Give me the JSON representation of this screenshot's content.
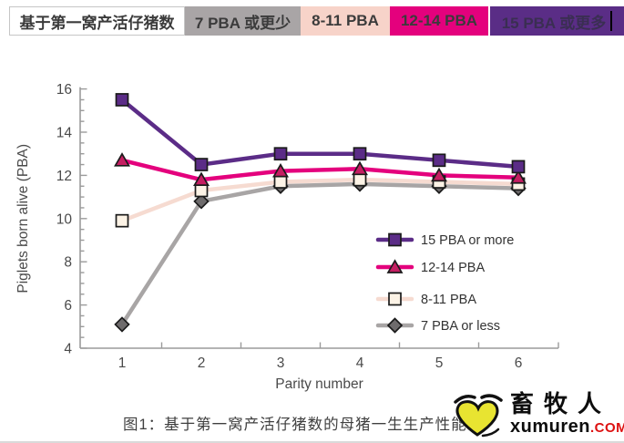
{
  "header": {
    "title": "基于第一窝产活仔猪数",
    "segments": [
      {
        "label": "7 PBA 或更少",
        "bg": "#a9a5a6",
        "fg": "#3b3b3b",
        "cursor": false
      },
      {
        "label": "8-11 PBA",
        "bg": "#f7d3c9",
        "fg": "#3b3b3b",
        "cursor": false
      },
      {
        "label": "12-14 PBA",
        "bg": "#e4017d",
        "fg": "#3b3b3b",
        "cursor": false
      },
      {
        "label": "15 PBA 或更多",
        "bg": "#5a2d86",
        "fg": "#3a2e52",
        "cursor": true
      }
    ]
  },
  "chart_data": {
    "type": "line",
    "x": [
      1,
      2,
      3,
      4,
      5,
      6
    ],
    "xlabel": "Parity number",
    "ylabel": "Piglets born alive (PBA)",
    "ylim": [
      4,
      16
    ],
    "ytick_step": 2,
    "ytick_minor_step": 0.5,
    "grid": false,
    "legend_position": "inside-right-lower",
    "axis_color": "#9b9b9b",
    "tick_label_color": "#4a4a4a",
    "series": [
      {
        "name": "15 PBA or more",
        "line_color": "#5b2c87",
        "marker": "square",
        "marker_fill": "#5b2c87",
        "values": [
          15.5,
          12.5,
          13.0,
          13.0,
          12.7,
          12.4
        ]
      },
      {
        "name": "12-14 PBA",
        "line_color": "#e4017d",
        "marker": "triangle",
        "marker_fill": "#c51e62",
        "values": [
          12.7,
          11.8,
          12.2,
          12.3,
          12.0,
          11.9
        ]
      },
      {
        "name": "8-11 PBA",
        "line_color": "#f6dbd1",
        "marker": "square",
        "marker_fill": "#fcf3e6",
        "values": [
          9.9,
          11.3,
          11.7,
          11.8,
          11.7,
          11.6
        ]
      },
      {
        "name": "7 PBA or less",
        "line_color": "#a8a5a5",
        "marker": "diamond",
        "marker_fill": "#6e6b6c",
        "values": [
          5.1,
          10.8,
          11.5,
          11.6,
          11.5,
          11.4
        ]
      }
    ]
  },
  "caption": {
    "text": "图1：基于第一窝产活仔猪数的母猪一生生产性能"
  },
  "watermark": {
    "brand": "畜牧人",
    "domain": "xumuren",
    "tld": ".COM",
    "tld_color": "#dd1111",
    "heart_color": "#e8e431"
  }
}
